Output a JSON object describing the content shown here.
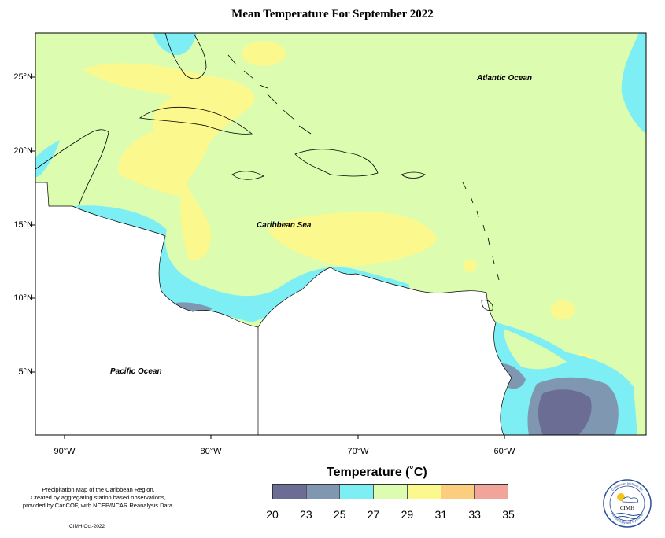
{
  "title": "Mean Temperature For September 2022",
  "ocean_labels": {
    "atlantic": "Atlantic Ocean",
    "caribbean": "Caribbean Sea",
    "pacific": "Pacific Ocean"
  },
  "lat_labels": [
    "25°N",
    "20°N",
    "15°N",
    "10°N",
    "5°N"
  ],
  "lon_labels": [
    "90°W",
    "80°W",
    "70°W",
    "60°W"
  ],
  "legend": {
    "title": "Temperature (˚C)",
    "ticks": [
      "20",
      "23",
      "25",
      "27",
      "29",
      "31",
      "33",
      "35"
    ],
    "colors": [
      "#6b6d94",
      "#7f97b0",
      "#7eeef5",
      "#dcfcb0",
      "#fbf88e",
      "#fbcd7e",
      "#f0a49a"
    ]
  },
  "credits": {
    "line1": "Precipitation Map of the Caribbean Region.",
    "line2": "Created by aggregating station based observations,",
    "line3": "provided by CariCOF, with NCEP/NCAR Reanalysis Data.",
    "stamp": "CIMH Oct-2022"
  },
  "logo": {
    "text": "CIMH",
    "ring_top": "Caribbean Institute for",
    "ring_bottom": "Meteorology and Hydrology"
  },
  "colors": {
    "land": "#ffffff",
    "base_field": "#dcfcb0",
    "warm": "#fbf88e",
    "cool": "#7eeef5",
    "cooler": "#7f97b0",
    "coolest": "#6b6d94"
  }
}
